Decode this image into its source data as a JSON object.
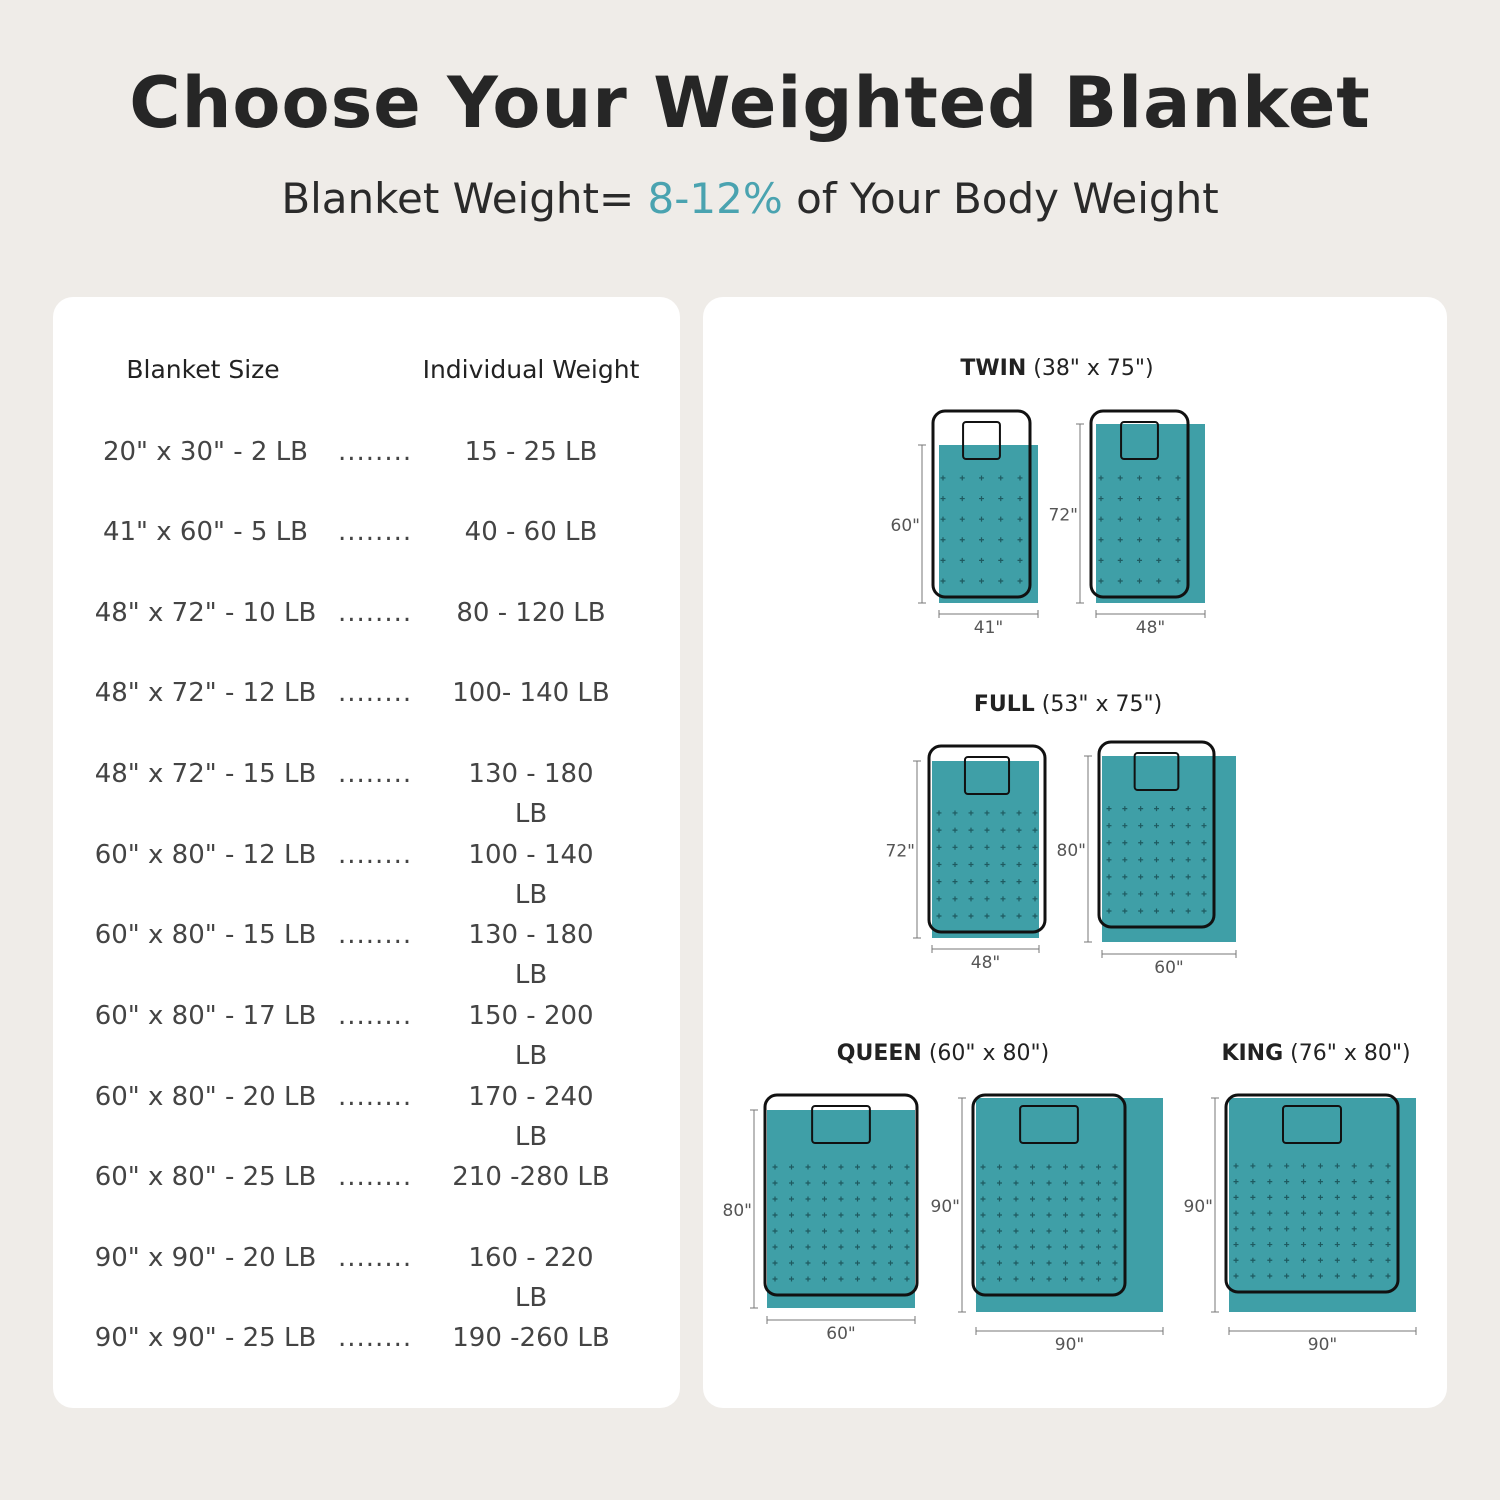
{
  "title": "Choose Your Weighted Blanket",
  "subtitle": {
    "prefix": "Blanket Weight=",
    "accent": "8-12%",
    "suffix": "of Your Body Weight"
  },
  "colors": {
    "accent": "#4aa3b0",
    "blanket": "#3f9fa7",
    "background": "#efece8"
  },
  "table": {
    "headers": [
      "Blanket Size",
      "Individual Weight"
    ],
    "leader": "........",
    "rows": [
      {
        "size": "20\" x 30\" - 2 LB",
        "weight": "15 - 25 LB"
      },
      {
        "size": "41\" x 60\" - 5 LB",
        "weight": "40 - 60 LB"
      },
      {
        "size": "48\" x 72\" - 10 LB",
        "weight": "80 - 120 LB"
      },
      {
        "size": "48\" x 72\" - 12 LB",
        "weight": "100- 140 LB"
      },
      {
        "size": "48\" x 72\" - 15 LB",
        "weight": "130 - 180 LB"
      },
      {
        "size": "60\" x 80\" - 12 LB",
        "weight": "100 - 140 LB"
      },
      {
        "size": "60\" x 80\" - 15 LB",
        "weight": "130 - 180 LB"
      },
      {
        "size": "60\" x 80\" - 17 LB",
        "weight": "150 - 200 LB"
      },
      {
        "size": "60\" x 80\" - 20 LB",
        "weight": "170 - 240 LB"
      },
      {
        "size": "60\" x 80\" - 25 LB",
        "weight": "210 -280 LB"
      },
      {
        "size": "90\" x 90\" - 20 LB",
        "weight": "160 - 220 LB"
      },
      {
        "size": "90\" x 90\" - 25 LB",
        "weight": "190 -260 LB"
      }
    ]
  },
  "beds": {
    "twin": {
      "name": "TWIN",
      "dims": "(38\" x 75\")"
    },
    "full": {
      "name": "FULL",
      "dims": "(53\" x 75\")"
    },
    "queen": {
      "name": "QUEEN",
      "dims": "(60\" x 80\")"
    },
    "king": {
      "name": "KING",
      "dims": "(76\" x 80\")"
    }
  },
  "diagrams": [
    {
      "bed": "twin",
      "blanket_height": "60\"",
      "blanket_width": "41\""
    },
    {
      "bed": "twin",
      "blanket_height": "72\"",
      "blanket_width": "48\""
    },
    {
      "bed": "full",
      "blanket_height": "72\"",
      "blanket_width": "48\""
    },
    {
      "bed": "full",
      "blanket_height": "80\"",
      "blanket_width": "60\""
    },
    {
      "bed": "queen",
      "blanket_height": "80\"",
      "blanket_width": "60\""
    },
    {
      "bed": "queen",
      "blanket_height": "90\"",
      "blanket_width": "90\""
    },
    {
      "bed": "king",
      "blanket_height": "90\"",
      "blanket_width": "90\""
    }
  ]
}
